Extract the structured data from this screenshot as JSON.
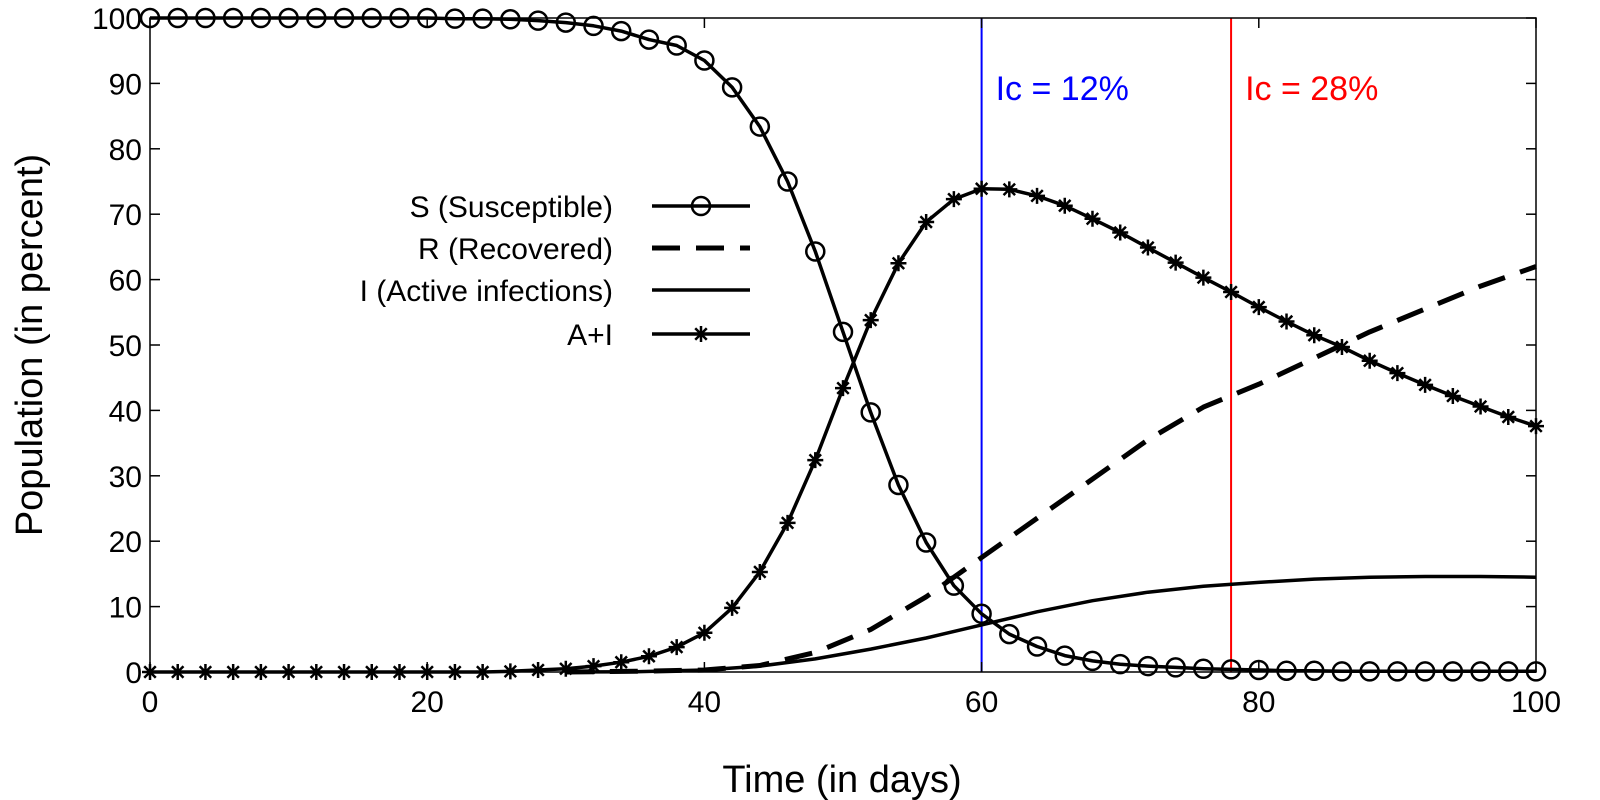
{
  "chart_data": {
    "type": "line",
    "title": "",
    "xlabel": "Time (in days)",
    "ylabel": "Population (in percent)",
    "xlim": [
      0,
      100
    ],
    "ylim": [
      0,
      100
    ],
    "xticks": [
      0,
      20,
      40,
      60,
      80,
      100
    ],
    "yticks": [
      0,
      10,
      20,
      30,
      40,
      50,
      60,
      70,
      80,
      90,
      100
    ],
    "grid": false,
    "legend_position": "center-left",
    "series": [
      {
        "name": "S (Susceptible)",
        "style": "solid-circle",
        "color": "#000000",
        "x": [
          0,
          2,
          4,
          6,
          8,
          10,
          12,
          14,
          16,
          18,
          20,
          22,
          24,
          26,
          28,
          30,
          32,
          34,
          36,
          38,
          40,
          42,
          44,
          46,
          48,
          50,
          52,
          54,
          56,
          58,
          60,
          62,
          64,
          66,
          68,
          70,
          72,
          74,
          76,
          78,
          80,
          82,
          84,
          86,
          88,
          90,
          92,
          94,
          96,
          98,
          100
        ],
        "y": [
          100,
          100,
          100,
          100,
          100,
          100,
          100,
          100,
          100,
          100,
          100,
          99.9,
          99.9,
          99.8,
          99.6,
          99.3,
          98.8,
          98.0,
          96.7,
          95.8,
          93.5,
          89.4,
          83.4,
          75.0,
          64.3,
          52.0,
          39.7,
          28.6,
          19.8,
          13.2,
          8.9,
          5.8,
          3.9,
          2.5,
          1.7,
          1.2,
          0.9,
          0.7,
          0.5,
          0.4,
          0.3,
          0.2,
          0.2,
          0.1,
          0.1,
          0.1,
          0.1,
          0.1,
          0.1,
          0.1,
          0.1
        ]
      },
      {
        "name": "R (Recovered)",
        "style": "dashed",
        "color": "#000000",
        "x": [
          30,
          35,
          40,
          44,
          48,
          52,
          56,
          60,
          64,
          68,
          72,
          76,
          80,
          84,
          88,
          92,
          96,
          100
        ],
        "y": [
          0,
          0.1,
          0.3,
          1.0,
          3.0,
          6.5,
          11.5,
          17.5,
          23.5,
          29.5,
          35.5,
          40.5,
          44.0,
          48.0,
          52.0,
          55.5,
          59.0,
          62.0
        ]
      },
      {
        "name": "I (Active infections)",
        "style": "solid",
        "color": "#000000",
        "x": [
          30,
          35,
          40,
          44,
          48,
          52,
          56,
          60,
          64,
          68,
          72,
          76,
          80,
          84,
          88,
          92,
          96,
          100
        ],
        "y": [
          0,
          0.05,
          0.3,
          0.9,
          2.0,
          3.5,
          5.2,
          7.2,
          9.2,
          10.9,
          12.2,
          13.1,
          13.7,
          14.2,
          14.5,
          14.6,
          14.6,
          14.5
        ]
      },
      {
        "name": "A+I",
        "style": "solid-star",
        "color": "#000000",
        "x": [
          0,
          2,
          4,
          6,
          8,
          10,
          12,
          14,
          16,
          18,
          20,
          22,
          24,
          26,
          28,
          30,
          32,
          34,
          36,
          38,
          40,
          42,
          44,
          46,
          48,
          50,
          52,
          54,
          56,
          58,
          60,
          62,
          64,
          66,
          68,
          70,
          72,
          74,
          76,
          78,
          80,
          82,
          84,
          86,
          88,
          90,
          92,
          94,
          96,
          98,
          100
        ],
        "y": [
          0,
          0,
          0,
          0,
          0,
          0,
          0,
          0,
          0,
          0,
          0,
          0,
          0,
          0.1,
          0.3,
          0.5,
          0.9,
          1.5,
          2.4,
          3.8,
          6.0,
          9.8,
          15.3,
          22.8,
          32.4,
          43.4,
          53.8,
          62.5,
          68.8,
          72.3,
          73.9,
          73.8,
          72.8,
          71.3,
          69.3,
          67.2,
          64.9,
          62.6,
          60.3,
          58.1,
          55.8,
          53.6,
          51.5,
          49.7,
          47.6,
          45.7,
          43.9,
          42.2,
          40.6,
          39.0,
          37.6
        ]
      }
    ],
    "annotations": [
      {
        "x": 60,
        "label": "Ic = 12%",
        "color": "#0000ff"
      },
      {
        "x": 78,
        "label": "Ic = 28%",
        "color": "#ff0000"
      }
    ]
  }
}
